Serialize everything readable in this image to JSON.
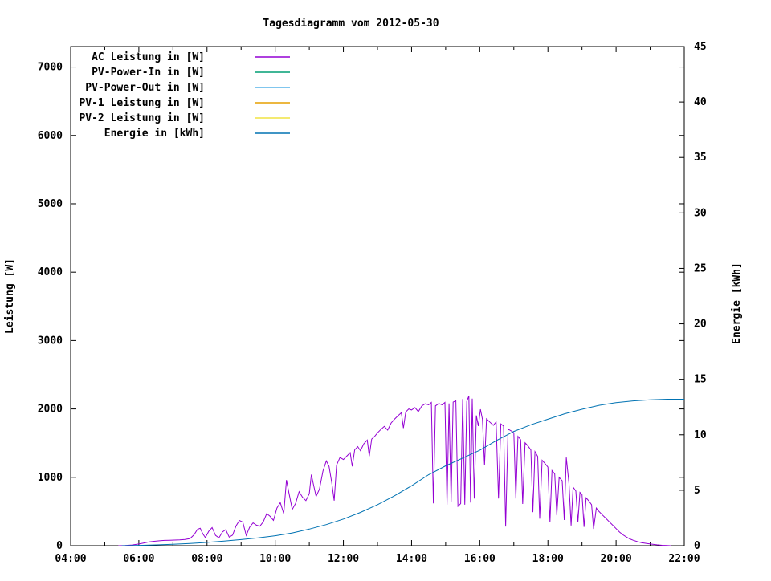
{
  "title": "Tagesdiagramm vom 2012-05-30",
  "chart_data": {
    "type": "line",
    "title": "Tagesdiagramm vom 2012-05-30",
    "x_axis": {
      "label": "",
      "tick_labels": [
        "04:00",
        "06:00",
        "08:00",
        "10:00",
        "12:00",
        "14:00",
        "16:00",
        "18:00",
        "20:00",
        "22:00"
      ],
      "tick_hours": [
        4,
        6,
        8,
        10,
        12,
        14,
        16,
        18,
        20,
        22
      ],
      "minor_tick_every_hours": 1,
      "range_hours": [
        4,
        22
      ]
    },
    "y1_axis": {
      "label": "Leistung [W]",
      "tick_labels": [
        "0",
        "1000",
        "2000",
        "3000",
        "4000",
        "5000",
        "6000",
        "7000"
      ],
      "tick_values": [
        0,
        1000,
        2000,
        3000,
        4000,
        5000,
        6000,
        7000
      ],
      "range": [
        0,
        7300
      ]
    },
    "y2_axis": {
      "label": "Energie [kWh]",
      "tick_labels": [
        "0",
        "5",
        "10",
        "15",
        "20",
        "25",
        "30",
        "35",
        "40",
        "45"
      ],
      "tick_values": [
        0,
        5,
        10,
        15,
        20,
        25,
        30,
        35,
        40,
        45
      ],
      "range": [
        0,
        45
      ]
    },
    "legend_position": "top-left-inside",
    "grid": false,
    "series": [
      {
        "name": "AC Leistung in [W]",
        "axis": "y1",
        "color": "#9400D3",
        "points": [
          [
            5.4,
            0
          ],
          [
            5.6,
            3
          ],
          [
            5.8,
            10
          ],
          [
            6.0,
            25
          ],
          [
            6.15,
            40
          ],
          [
            6.3,
            55
          ],
          [
            6.45,
            65
          ],
          [
            6.6,
            72
          ],
          [
            6.75,
            78
          ],
          [
            6.9,
            80
          ],
          [
            7.05,
            82
          ],
          [
            7.2,
            85
          ],
          [
            7.35,
            90
          ],
          [
            7.5,
            105
          ],
          [
            7.62,
            160
          ],
          [
            7.72,
            240
          ],
          [
            7.8,
            255
          ],
          [
            7.88,
            170
          ],
          [
            7.95,
            120
          ],
          [
            8.05,
            210
          ],
          [
            8.15,
            265
          ],
          [
            8.25,
            150
          ],
          [
            8.35,
            115
          ],
          [
            8.45,
            200
          ],
          [
            8.55,
            235
          ],
          [
            8.65,
            125
          ],
          [
            8.75,
            155
          ],
          [
            8.85,
            290
          ],
          [
            8.95,
            370
          ],
          [
            9.05,
            345
          ],
          [
            9.15,
            150
          ],
          [
            9.25,
            270
          ],
          [
            9.35,
            335
          ],
          [
            9.45,
            300
          ],
          [
            9.55,
            285
          ],
          [
            9.65,
            350
          ],
          [
            9.75,
            470
          ],
          [
            9.85,
            430
          ],
          [
            9.95,
            370
          ],
          [
            10.05,
            550
          ],
          [
            10.15,
            630
          ],
          [
            10.25,
            470
          ],
          [
            10.33,
            960
          ],
          [
            10.4,
            780
          ],
          [
            10.5,
            530
          ],
          [
            10.6,
            620
          ],
          [
            10.7,
            790
          ],
          [
            10.8,
            710
          ],
          [
            10.9,
            660
          ],
          [
            11.0,
            760
          ],
          [
            11.06,
            1040
          ],
          [
            11.12,
            900
          ],
          [
            11.2,
            720
          ],
          [
            11.3,
            830
          ],
          [
            11.4,
            1090
          ],
          [
            11.5,
            1240
          ],
          [
            11.58,
            1160
          ],
          [
            11.66,
            920
          ],
          [
            11.73,
            660
          ],
          [
            11.8,
            1180
          ],
          [
            11.9,
            1290
          ],
          [
            12.0,
            1260
          ],
          [
            12.1,
            1310
          ],
          [
            12.2,
            1360
          ],
          [
            12.26,
            1160
          ],
          [
            12.33,
            1400
          ],
          [
            12.42,
            1450
          ],
          [
            12.5,
            1390
          ],
          [
            12.6,
            1490
          ],
          [
            12.7,
            1545
          ],
          [
            12.76,
            1310
          ],
          [
            12.83,
            1560
          ],
          [
            12.92,
            1600
          ],
          [
            13.0,
            1650
          ],
          [
            13.1,
            1700
          ],
          [
            13.2,
            1745
          ],
          [
            13.3,
            1690
          ],
          [
            13.4,
            1795
          ],
          [
            13.5,
            1850
          ],
          [
            13.6,
            1900
          ],
          [
            13.7,
            1945
          ],
          [
            13.76,
            1720
          ],
          [
            13.83,
            1955
          ],
          [
            13.92,
            2000
          ],
          [
            14.0,
            1985
          ],
          [
            14.1,
            2020
          ],
          [
            14.2,
            1960
          ],
          [
            14.3,
            2045
          ],
          [
            14.4,
            2075
          ],
          [
            14.5,
            2060
          ],
          [
            14.58,
            2095
          ],
          [
            14.64,
            620
          ],
          [
            14.7,
            2045
          ],
          [
            14.8,
            2080
          ],
          [
            14.9,
            2060
          ],
          [
            14.98,
            2095
          ],
          [
            15.04,
            600
          ],
          [
            15.1,
            2080
          ],
          [
            15.16,
            640
          ],
          [
            15.22,
            2100
          ],
          [
            15.3,
            2120
          ],
          [
            15.36,
            575
          ],
          [
            15.44,
            615
          ],
          [
            15.5,
            2145
          ],
          [
            15.56,
            600
          ],
          [
            15.62,
            2110
          ],
          [
            15.68,
            2190
          ],
          [
            15.73,
            630
          ],
          [
            15.78,
            2150
          ],
          [
            15.84,
            690
          ],
          [
            15.9,
            1905
          ],
          [
            15.96,
            1750
          ],
          [
            16.02,
            1995
          ],
          [
            16.08,
            1850
          ],
          [
            16.14,
            1180
          ],
          [
            16.2,
            1855
          ],
          [
            16.3,
            1805
          ],
          [
            16.4,
            1760
          ],
          [
            16.48,
            1810
          ],
          [
            16.55,
            690
          ],
          [
            16.62,
            1780
          ],
          [
            16.7,
            1750
          ],
          [
            16.76,
            280
          ],
          [
            16.83,
            1705
          ],
          [
            16.92,
            1680
          ],
          [
            17.0,
            1650
          ],
          [
            17.06,
            690
          ],
          [
            17.12,
            1600
          ],
          [
            17.2,
            1550
          ],
          [
            17.26,
            610
          ],
          [
            17.33,
            1505
          ],
          [
            17.42,
            1455
          ],
          [
            17.5,
            1400
          ],
          [
            17.56,
            490
          ],
          [
            17.62,
            1375
          ],
          [
            17.7,
            1305
          ],
          [
            17.76,
            395
          ],
          [
            17.83,
            1250
          ],
          [
            17.92,
            1200
          ],
          [
            18.0,
            1150
          ],
          [
            18.06,
            345
          ],
          [
            18.12,
            1100
          ],
          [
            18.2,
            1050
          ],
          [
            18.26,
            445
          ],
          [
            18.33,
            1000
          ],
          [
            18.42,
            950
          ],
          [
            18.48,
            375
          ],
          [
            18.54,
            1290
          ],
          [
            18.62,
            905
          ],
          [
            18.68,
            295
          ],
          [
            18.74,
            855
          ],
          [
            18.82,
            800
          ],
          [
            18.88,
            345
          ],
          [
            18.94,
            780
          ],
          [
            19.0,
            750
          ],
          [
            19.06,
            275
          ],
          [
            19.12,
            700
          ],
          [
            19.2,
            655
          ],
          [
            19.28,
            600
          ],
          [
            19.34,
            245
          ],
          [
            19.42,
            550
          ],
          [
            19.5,
            500
          ],
          [
            19.6,
            450
          ],
          [
            19.7,
            400
          ],
          [
            19.8,
            350
          ],
          [
            19.9,
            300
          ],
          [
            20.0,
            250
          ],
          [
            20.1,
            200
          ],
          [
            20.2,
            160
          ],
          [
            20.3,
            128
          ],
          [
            20.4,
            100
          ],
          [
            20.5,
            80
          ],
          [
            20.62,
            60
          ],
          [
            20.75,
            45
          ],
          [
            20.9,
            32
          ],
          [
            21.05,
            22
          ],
          [
            21.2,
            13
          ],
          [
            21.35,
            6
          ],
          [
            21.5,
            2
          ],
          [
            21.6,
            0
          ]
        ]
      },
      {
        "name": "PV-Power-In in [W]",
        "axis": "y1",
        "color": "#009E73",
        "points": []
      },
      {
        "name": "PV-Power-Out in [W]",
        "axis": "y1",
        "color": "#56B4E9",
        "points": []
      },
      {
        "name": "PV-1 Leistung in [W]",
        "axis": "y1",
        "color": "#E69F00",
        "points": []
      },
      {
        "name": "PV-2 Leistung in [W]",
        "axis": "y1",
        "color": "#F0E442",
        "points": []
      },
      {
        "name": "Energie in [kWh]",
        "axis": "y2",
        "color": "#0072B2",
        "points": [
          [
            5.5,
            0.0
          ],
          [
            6.0,
            0.03
          ],
          [
            6.5,
            0.07
          ],
          [
            7.0,
            0.12
          ],
          [
            7.5,
            0.2
          ],
          [
            8.0,
            0.3
          ],
          [
            8.5,
            0.42
          ],
          [
            9.0,
            0.55
          ],
          [
            9.5,
            0.7
          ],
          [
            10.0,
            0.9
          ],
          [
            10.5,
            1.15
          ],
          [
            11.0,
            1.5
          ],
          [
            11.5,
            1.9
          ],
          [
            12.0,
            2.4
          ],
          [
            12.5,
            3.0
          ],
          [
            13.0,
            3.7
          ],
          [
            13.5,
            4.5
          ],
          [
            14.0,
            5.4
          ],
          [
            14.5,
            6.4
          ],
          [
            15.0,
            7.2
          ],
          [
            15.5,
            7.9
          ],
          [
            16.0,
            8.6
          ],
          [
            16.5,
            9.5
          ],
          [
            17.0,
            10.3
          ],
          [
            17.5,
            10.9
          ],
          [
            18.0,
            11.4
          ],
          [
            18.5,
            11.9
          ],
          [
            19.0,
            12.3
          ],
          [
            19.5,
            12.65
          ],
          [
            20.0,
            12.9
          ],
          [
            20.5,
            13.05
          ],
          [
            21.0,
            13.15
          ],
          [
            21.5,
            13.2
          ],
          [
            22.0,
            13.2
          ]
        ]
      }
    ]
  },
  "colors": {
    "background": "#ffffff",
    "border": "#000000",
    "text": "#000000",
    "ac_power": "#9400D3",
    "pv_power_in": "#009E73",
    "pv_power_out": "#56B4E9",
    "pv1_power": "#E69F00",
    "pv2_power": "#F0E442",
    "energy": "#0072B2"
  }
}
